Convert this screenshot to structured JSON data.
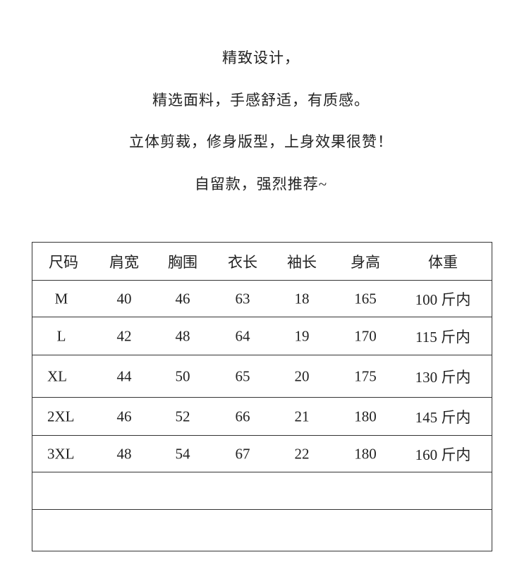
{
  "intro_lines": [
    "精致设计，",
    "精选面料，手感舒适，有质感。",
    "立体剪裁，修身版型，上身效果很赞！",
    "自留款，强烈推荐~"
  ],
  "table": {
    "headers": [
      "尺码",
      "肩宽",
      "胸围",
      "衣长",
      "袖长",
      "身高",
      "体重"
    ],
    "rows": [
      [
        "M",
        "40",
        "46",
        "63",
        "18",
        "165",
        "100 斤内"
      ],
      [
        "L",
        "42",
        "48",
        "64",
        "19",
        "170",
        "115 斤内"
      ],
      [
        "XL",
        "44",
        "50",
        "65",
        "20",
        "175",
        "130 斤内"
      ],
      [
        "2XL",
        "46",
        "52",
        "66",
        "21",
        "180",
        "145 斤内"
      ],
      [
        "3XL",
        "48",
        "54",
        "67",
        "22",
        "180",
        "160 斤内"
      ]
    ]
  }
}
